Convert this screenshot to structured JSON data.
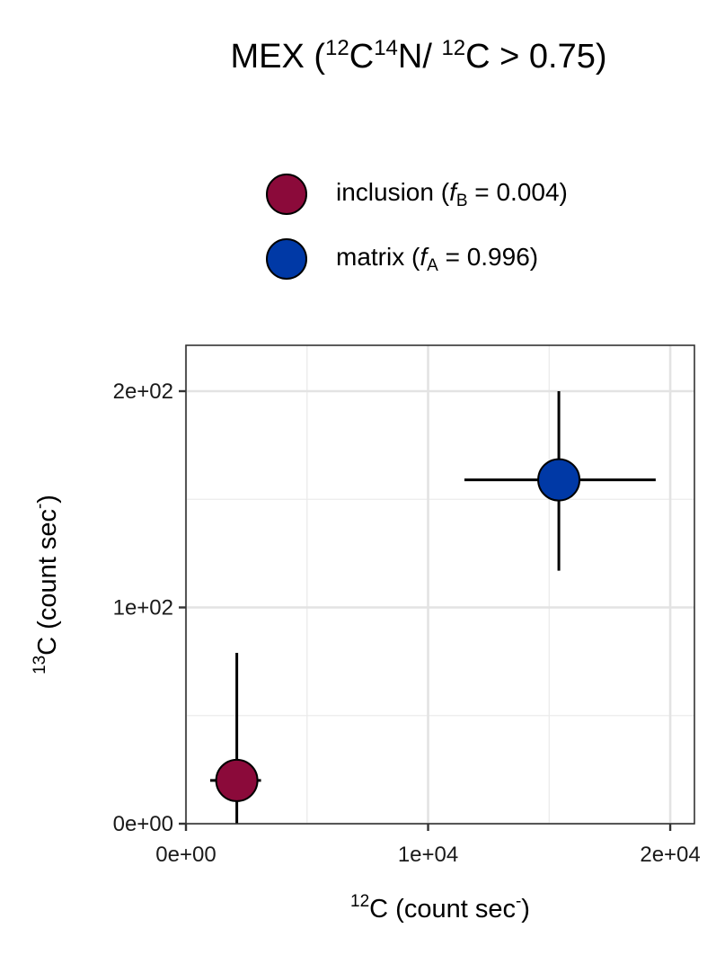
{
  "chart_data": {
    "type": "scatter",
    "title": {
      "text_prefix": "MEX (",
      "sup1": "12",
      "t1": "C",
      "sup2": "14",
      "t2": "N/ ",
      "sup3": "12",
      "t3": "C > 0.75)"
    },
    "xlabel": {
      "sup": "12",
      "text": "C (count sec",
      "trail_sup": "-",
      "close": ")"
    },
    "ylabel": {
      "sup": "13",
      "text": "C (count sec",
      "trail_sup": "-",
      "close": ")"
    },
    "xlim": [
      0,
      21000
    ],
    "ylim": [
      0,
      200
    ],
    "x_ticks": [
      0,
      10000,
      20000
    ],
    "x_tick_labels": [
      "0e+00",
      "1e+04",
      "2e+04"
    ],
    "y_ticks": [
      0,
      100,
      200
    ],
    "y_tick_labels": [
      "0e+00",
      "1e+02",
      "2e+02"
    ],
    "x_minor": [
      5000,
      15000
    ],
    "y_minor": [
      50,
      150
    ],
    "grid": true,
    "legend_position": "top",
    "series": [
      {
        "name_text": "inclusion (",
        "name_var": "f",
        "name_sub": "B",
        "name_value": " = 0.004)",
        "color": "#8B0A3A",
        "x": 2100,
        "y": 20,
        "x_err": [
          1000,
          3100
        ],
        "y_err": [
          0,
          79
        ]
      },
      {
        "name_text": "matrix (",
        "name_var": "f",
        "name_sub": "A",
        "name_value": " = 0.996)",
        "color": "#0039A6",
        "x": 15400,
        "y": 159,
        "x_err": [
          11500,
          19400
        ],
        "y_err": [
          117,
          200
        ]
      }
    ]
  }
}
